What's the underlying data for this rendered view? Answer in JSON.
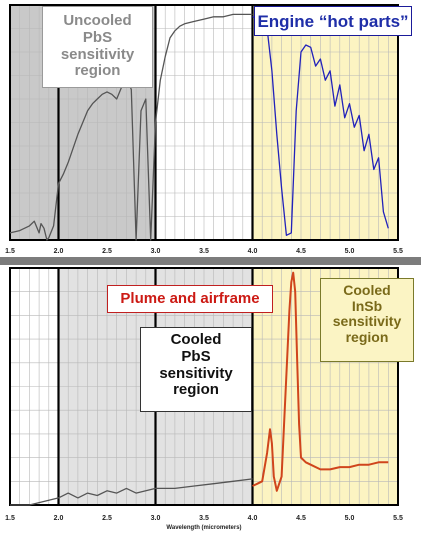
{
  "callouts": {
    "uncooled_pbs": "Uncooled\nPbS\nsensitivity\nregion",
    "hot_parts": "Engine “hot parts”",
    "plume": "Plume and airframe",
    "cooled_pbs": "Cooled\nPbS\nsensitivity\nregion",
    "cooled_insb": "Cooled\nInSb\nsensitivity\nregion"
  },
  "colors": {
    "uncooled_pbs_region": "#c9c9c9",
    "cooled_pbs_region": "#e2e2e2",
    "insb_region": "#fcf4c2",
    "atmosphere": "#555555",
    "hot_parts": "#2222bb",
    "plume": "#d0451c",
    "divider": "#7c7c7c"
  },
  "chart_data": [
    {
      "type": "line",
      "title": "",
      "xlabel": "",
      "ylabel": "",
      "xlim": [
        1.5,
        5.5
      ],
      "x_ticks": [
        "1.5",
        "2.0",
        "2.5",
        "3.0",
        "3.5",
        "4.0",
        "4.5",
        "5.0",
        "5.5"
      ],
      "grid": true,
      "shaded_regions": [
        {
          "x": [
            1.5,
            3.0
          ],
          "label": "Uncooled PbS sensitivity region"
        },
        {
          "x": [
            4.0,
            5.5
          ],
          "label": "Cooled InSb sensitivity region"
        }
      ],
      "series": [
        {
          "name": "",
          "x": [
            1.5,
            1.6,
            1.7,
            1.75,
            1.8,
            1.82,
            1.85,
            1.88,
            1.9,
            1.95,
            2.0,
            2.05,
            2.1,
            2.2,
            2.3,
            2.35,
            2.4,
            2.45,
            2.5,
            2.55,
            2.6,
            2.7,
            2.75,
            2.8,
            2.85,
            2.9,
            2.95,
            3.0,
            3.05,
            3.1,
            3.15,
            3.2,
            3.25,
            3.3,
            3.4,
            3.5,
            3.6,
            3.7,
            3.8,
            3.9,
            4.0
          ],
          "y": [
            0.03,
            0.04,
            0.06,
            0.08,
            0.03,
            0.07,
            0.05,
            0.0,
            0.01,
            0.06,
            0.24,
            0.28,
            0.33,
            0.45,
            0.55,
            0.58,
            0.6,
            0.62,
            0.63,
            0.62,
            0.6,
            0.7,
            0.64,
            0.0,
            0.55,
            0.6,
            0.0,
            0.5,
            0.68,
            0.78,
            0.86,
            0.89,
            0.91,
            0.92,
            0.93,
            0.94,
            0.95,
            0.95,
            0.96,
            0.96,
            0.96
          ]
        },
        {
          "name": "",
          "x": [
            4.0,
            4.1,
            4.15,
            4.2,
            4.25,
            4.3,
            4.35,
            4.4,
            4.45,
            4.5,
            4.55,
            4.6,
            4.65,
            4.7,
            4.75,
            4.8,
            4.85,
            4.9,
            4.95,
            5.0,
            5.05,
            5.1,
            5.15,
            5.2,
            5.25,
            5.3,
            5.35,
            5.4
          ],
          "y": [
            0.95,
            0.94,
            0.9,
            0.72,
            0.45,
            0.22,
            0.02,
            0.03,
            0.55,
            0.8,
            0.83,
            0.82,
            0.74,
            0.77,
            0.68,
            0.72,
            0.57,
            0.66,
            0.52,
            0.58,
            0.48,
            0.53,
            0.38,
            0.45,
            0.3,
            0.35,
            0.12,
            0.05
          ]
        }
      ]
    },
    {
      "type": "line",
      "title": "",
      "xlabel": "Wavelength (micrometers)",
      "ylabel": "",
      "xlim": [
        1.5,
        5.5
      ],
      "x_ticks": [
        "1.5",
        "2.0",
        "2.5",
        "3.0",
        "3.5",
        "4.0",
        "4.5",
        "5.0",
        "5.5"
      ],
      "grid": true,
      "shaded_regions": [
        {
          "x": [
            2.0,
            4.0
          ],
          "label": "Cooled PbS sensitivity region"
        },
        {
          "x": [
            4.0,
            5.5
          ],
          "label": "Cooled InSb sensitivity region"
        }
      ],
      "series": [
        {
          "name": "",
          "x": [
            1.5,
            1.7,
            1.9,
            2.0,
            2.1,
            2.2,
            2.3,
            2.4,
            2.5,
            2.6,
            2.7,
            2.8,
            2.9,
            3.0,
            3.2,
            3.4,
            3.6,
            3.8,
            4.0
          ],
          "y": [
            0.0,
            0.0,
            0.02,
            0.03,
            0.05,
            0.03,
            0.05,
            0.04,
            0.06,
            0.05,
            0.07,
            0.05,
            0.06,
            0.07,
            0.07,
            0.08,
            0.09,
            0.1,
            0.11
          ]
        },
        {
          "name": "",
          "x": [
            4.0,
            4.05,
            4.1,
            4.15,
            4.18,
            4.2,
            4.22,
            4.25,
            4.3,
            4.35,
            4.38,
            4.4,
            4.42,
            4.44,
            4.46,
            4.48,
            4.5,
            4.55,
            4.6,
            4.7,
            4.8,
            4.9,
            5.0,
            5.1,
            5.2,
            5.3,
            5.4
          ],
          "y": [
            0.08,
            0.09,
            0.1,
            0.22,
            0.32,
            0.26,
            0.12,
            0.06,
            0.12,
            0.55,
            0.82,
            0.94,
            0.98,
            0.9,
            0.62,
            0.34,
            0.2,
            0.18,
            0.17,
            0.15,
            0.15,
            0.16,
            0.16,
            0.17,
            0.17,
            0.18,
            0.18
          ]
        }
      ]
    }
  ]
}
